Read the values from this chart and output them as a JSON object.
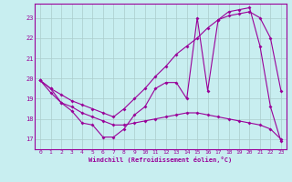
{
  "xlabel": "Windchill (Refroidissement éolien,°C)",
  "bg_color": "#c8eef0",
  "line_color": "#990099",
  "grid_color": "#aacccc",
  "xlim": [
    -0.5,
    23.5
  ],
  "ylim": [
    16.5,
    23.7
  ],
  "yticks": [
    17,
    18,
    19,
    20,
    21,
    22,
    23
  ],
  "xticks": [
    0,
    1,
    2,
    3,
    4,
    5,
    6,
    7,
    8,
    9,
    10,
    11,
    12,
    13,
    14,
    15,
    16,
    17,
    18,
    19,
    20,
    21,
    22,
    23
  ],
  "series1_x": [
    0,
    1,
    2,
    3,
    4,
    5,
    6,
    7,
    8,
    9,
    10,
    11,
    12,
    13,
    14,
    15,
    16,
    17,
    18,
    19,
    20,
    21,
    22,
    23
  ],
  "series1_y": [
    19.9,
    19.5,
    18.8,
    18.4,
    17.8,
    17.7,
    17.1,
    17.1,
    17.5,
    18.2,
    18.6,
    19.5,
    19.8,
    19.8,
    19.0,
    23.0,
    19.4,
    22.9,
    23.3,
    23.4,
    23.5,
    21.6,
    18.6,
    16.9
  ],
  "series2_x": [
    0,
    1,
    2,
    3,
    4,
    5,
    6,
    7,
    8,
    9,
    10,
    11,
    12,
    13,
    14,
    15,
    16,
    17,
    18,
    19,
    20,
    21,
    22,
    23
  ],
  "series2_y": [
    19.9,
    19.5,
    19.2,
    18.9,
    18.7,
    18.5,
    18.3,
    18.1,
    18.5,
    19.0,
    19.5,
    20.1,
    20.6,
    21.2,
    21.6,
    22.0,
    22.5,
    22.9,
    23.1,
    23.2,
    23.3,
    23.0,
    22.0,
    19.4
  ],
  "series3_x": [
    0,
    1,
    2,
    3,
    4,
    5,
    6,
    7,
    8,
    9,
    10,
    11,
    12,
    13,
    14,
    15,
    16,
    17,
    18,
    19,
    20,
    21,
    22,
    23
  ],
  "series3_y": [
    19.9,
    19.3,
    18.8,
    18.6,
    18.3,
    18.1,
    17.9,
    17.7,
    17.7,
    17.8,
    17.9,
    18.0,
    18.1,
    18.2,
    18.3,
    18.3,
    18.2,
    18.1,
    18.0,
    17.9,
    17.8,
    17.7,
    17.5,
    17.0
  ]
}
